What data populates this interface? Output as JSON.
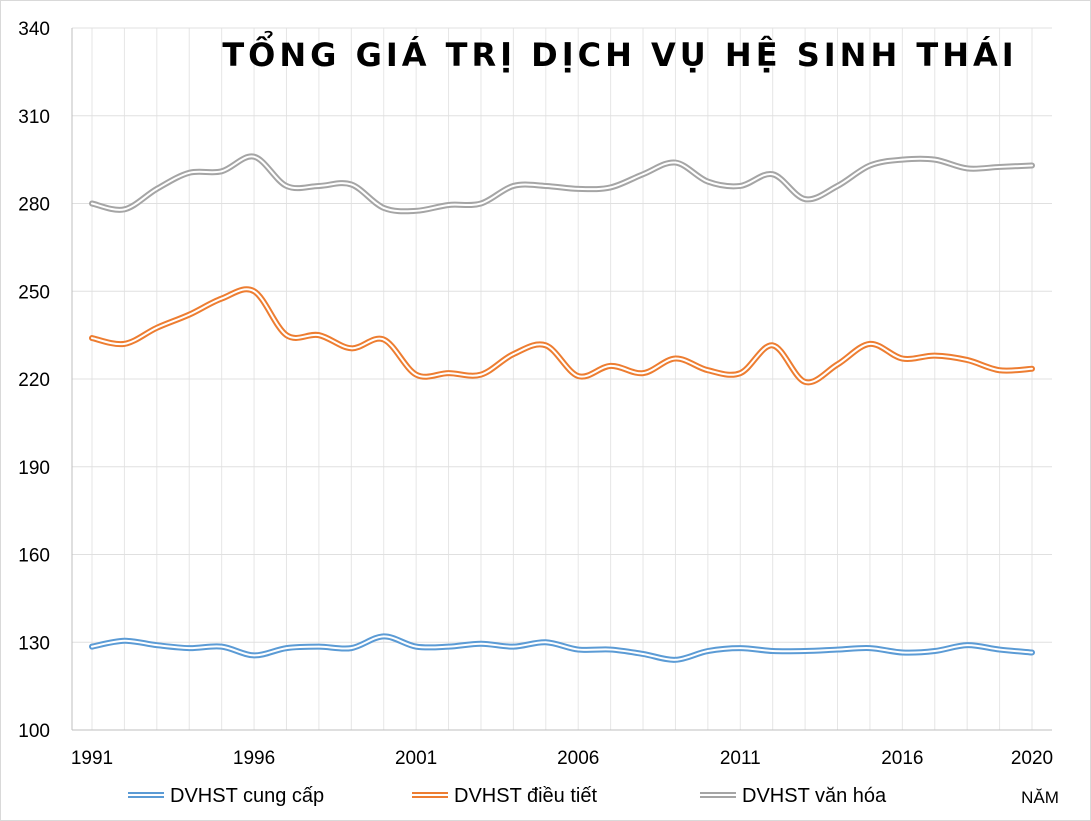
{
  "chart_data": {
    "type": "line",
    "title": "TỔNG GIÁ TRỊ DỊCH VỤ HỆ SINH THÁI",
    "xlabel": "NĂM",
    "ylabel": "",
    "ylim": [
      100,
      340
    ],
    "xlim": [
      1991,
      2020
    ],
    "y_ticks": [
      "100",
      "130",
      "160",
      "190",
      "220",
      "250",
      "280",
      "310",
      "340"
    ],
    "x_ticks": [
      "1991",
      "1996",
      "2001",
      "2006",
      "2011",
      "2016",
      "2020"
    ],
    "grid": true,
    "legend_position": "bottom",
    "x": [
      1991,
      1992,
      1993,
      1994,
      1995,
      1996,
      1997,
      1998,
      1999,
      2000,
      2001,
      2002,
      2003,
      2004,
      2005,
      2006,
      2007,
      2008,
      2009,
      2010,
      2011,
      2012,
      2013,
      2014,
      2015,
      2016,
      2017,
      2018,
      2019,
      2020
    ],
    "series": [
      {
        "name": "DVHST cung cấp",
        "color": "#5b9bd5",
        "values": [
          128.5,
          130.5,
          129,
          128,
          128.5,
          125.5,
          128,
          128.5,
          128,
          132,
          128.5,
          128.5,
          129.5,
          128.5,
          130,
          127.5,
          127.5,
          126,
          124,
          127,
          128,
          127,
          127,
          127.5,
          128,
          126.5,
          127,
          129,
          127.5,
          126.5
        ]
      },
      {
        "name": "DVHST điều tiết",
        "color": "#ed7d31",
        "values": [
          234,
          232,
          237.5,
          242,
          247.5,
          250,
          235,
          235,
          230.5,
          233.5,
          221.5,
          222,
          221.5,
          228.5,
          231.5,
          221,
          224.5,
          222,
          227,
          223,
          222,
          231.5,
          219,
          225,
          232,
          227,
          228,
          226.5,
          223,
          223.5
        ]
      },
      {
        "name": "DVHST văn hóa",
        "color": "#a5a5a5",
        "values": [
          280,
          278,
          285,
          290.5,
          291,
          296,
          286,
          286,
          286.5,
          278.5,
          277.5,
          279.5,
          280,
          286,
          286,
          285,
          285.5,
          290,
          294,
          287.5,
          286,
          290,
          281.5,
          286,
          293,
          295,
          295,
          292,
          292.5,
          293
        ]
      }
    ]
  }
}
